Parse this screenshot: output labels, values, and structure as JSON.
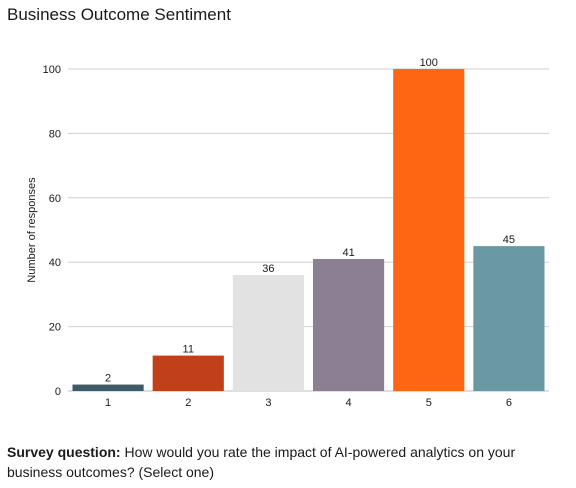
{
  "chart_data": {
    "type": "bar",
    "title": "Business Outcome Sentiment",
    "xlabel": "",
    "ylabel": "Number of responses",
    "categories": [
      "1",
      "2",
      "3",
      "4",
      "5",
      "6"
    ],
    "values": [
      2,
      11,
      36,
      41,
      100,
      45
    ],
    "data_labels": [
      "2",
      "11",
      "36",
      "41",
      "100",
      "45"
    ],
    "colors": [
      "#3d5a66",
      "#c0401a",
      "#e2e2e2",
      "#8a7f93",
      "#ff6612",
      "#6a98a3"
    ],
    "ylim": [
      0,
      100
    ],
    "yticks": [
      0,
      20,
      40,
      60,
      80,
      100
    ],
    "ytick_labels": [
      "0",
      "20",
      "40",
      "60",
      "80",
      "100"
    ],
    "grid": true,
    "legend": "none"
  },
  "note": {
    "label": "Survey question:",
    "text": " How would you rate the impact of AI-powered analytics on your business outcomes? (Select one)"
  }
}
